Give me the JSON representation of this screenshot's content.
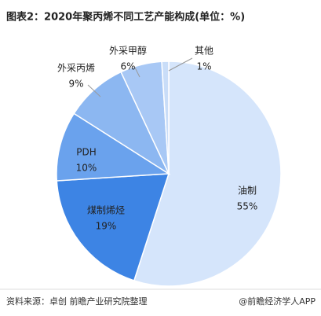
{
  "chart_data": {
    "type": "pie",
    "title": "图表2：2020年聚丙烯不同工艺产能构成(单位：%)",
    "categories": [
      "油制",
      "煤制烯烃",
      "PDH",
      "外采丙烯",
      "外采甲醇",
      "其他"
    ],
    "values": [
      55,
      19,
      10,
      9,
      6,
      1
    ],
    "value_labels": [
      "55%",
      "19%",
      "10%",
      "9%",
      "6%",
      "1%"
    ],
    "colors": [
      "#d5e5fb",
      "#3d84e4",
      "#6aa2ed",
      "#8cb7f1",
      "#a8c8f5",
      "#c9ddf8"
    ],
    "source": "资料来源：卓创 前瞻产业研究院整理",
    "credit": "@前瞻经济学人APP"
  }
}
